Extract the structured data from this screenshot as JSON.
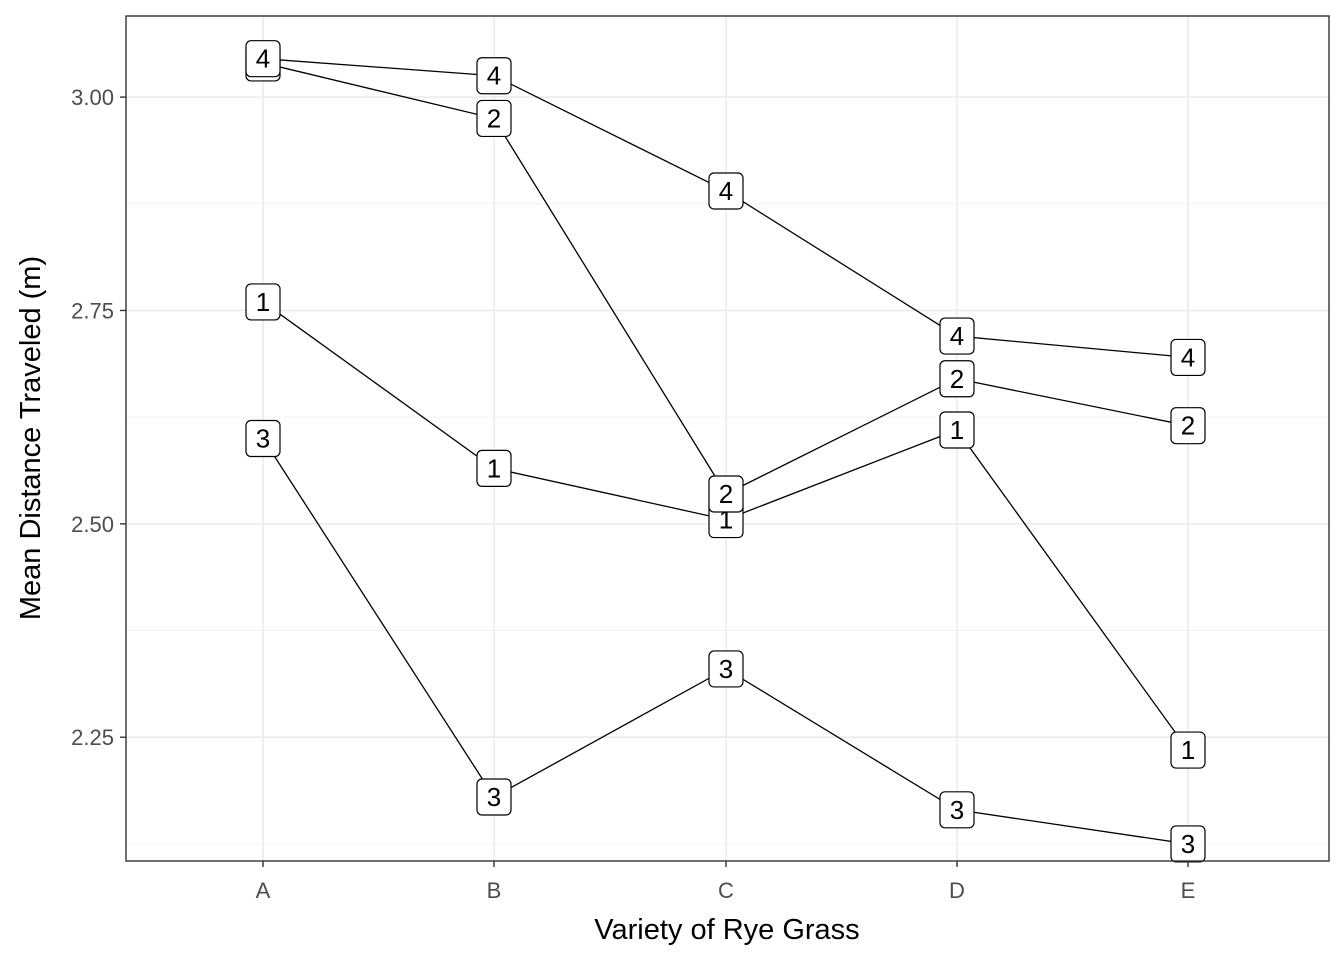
{
  "chart_data": {
    "type": "line",
    "xlabel": "Variety of Rye Grass",
    "ylabel": "Mean Distance Traveled (m)",
    "categories": [
      "A",
      "B",
      "C",
      "D",
      "E"
    ],
    "ylim": [
      2.105,
      3.095
    ],
    "yticks": [
      2.25,
      2.5,
      2.75,
      3.0
    ],
    "ytick_labels": [
      "2.25",
      "2.50",
      "2.75",
      "3.00"
    ],
    "grid": true,
    "series": [
      {
        "name": "1",
        "values": [
          2.76,
          2.565,
          2.505,
          2.61,
          2.235
        ]
      },
      {
        "name": "2",
        "values": [
          3.04,
          2.975,
          2.535,
          2.67,
          2.615
        ]
      },
      {
        "name": "3",
        "values": [
          2.6,
          2.18,
          2.33,
          2.165,
          2.125
        ]
      },
      {
        "name": "4",
        "values": [
          3.045,
          3.025,
          2.89,
          2.72,
          2.695
        ]
      }
    ]
  }
}
